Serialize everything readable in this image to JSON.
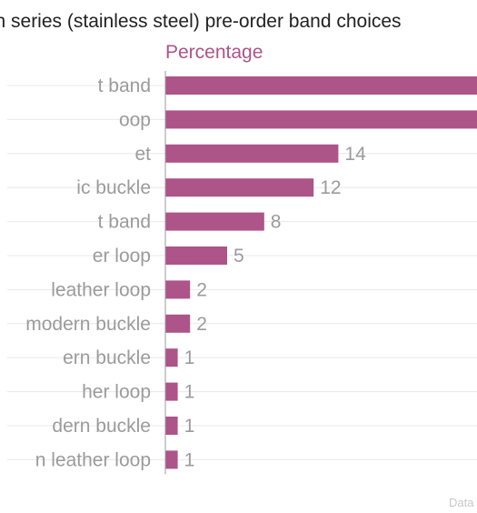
{
  "chart_data": {
    "type": "bar",
    "orientation": "horizontal",
    "title": "ch series (stainless steel) pre-order band choices",
    "series": [
      {
        "name": "Percentage",
        "color": "#ad5489"
      }
    ],
    "categories": [
      "t band",
      "oop",
      "et",
      "ic buckle",
      "t band",
      "er loop",
      "leather loop",
      "modern buckle",
      "ern buckle",
      "her loop",
      "dern buckle",
      "n leather loop"
    ],
    "values": [
      null,
      null,
      14,
      12,
      8,
      5,
      2,
      2,
      1,
      1,
      1,
      1
    ],
    "value_labels": [
      "",
      "",
      "14",
      "12",
      "8",
      "5",
      "2",
      "2",
      "1",
      "1",
      "1",
      "1"
    ],
    "x_scale_px_per_unit": 13.6,
    "truncated_bars_extend_past_right_edge": true,
    "grid": true,
    "colors": {
      "bar": "#ad5489",
      "label": "#9b9b9b",
      "gridline": "#e8e8e8",
      "axis": "#9b9b9b",
      "title": "#222222",
      "source": "#c8c8c8"
    }
  },
  "source_text": "Data"
}
